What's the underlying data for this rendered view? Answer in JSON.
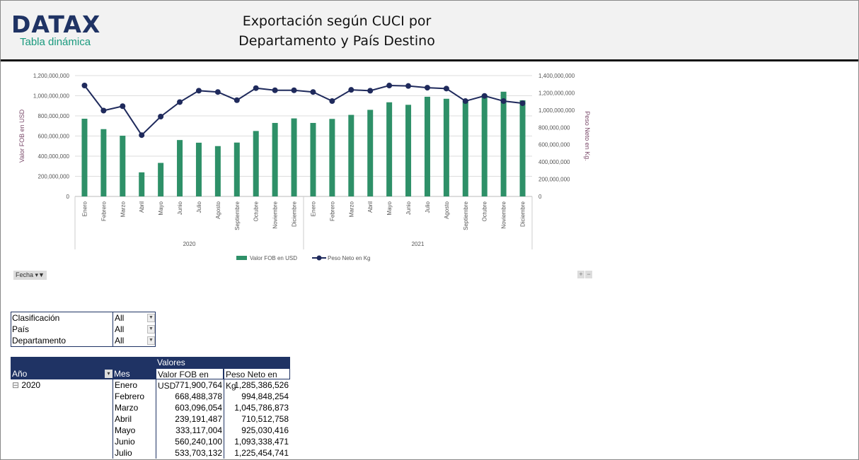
{
  "header": {
    "logo": "DATAX",
    "subtitle": "Tabla dinámica",
    "title_line1": "Exportación según CUCI por",
    "title_line2": "Departamento y País Destino"
  },
  "chart_data": {
    "type": "bar+line",
    "categories": [
      "Enero",
      "Febrero",
      "Marzo",
      "Abril",
      "Mayo",
      "Junio",
      "Julio",
      "Agosto",
      "Septiembre",
      "Octubre",
      "Noviembre",
      "Diciembre",
      "Enero",
      "Febrero",
      "Marzo",
      "Abril",
      "Mayo",
      "Junio",
      "Julio",
      "Agosto",
      "Septiembre",
      "Octubre",
      "Noviembre",
      "Diciembre"
    ],
    "groups": [
      "2020",
      "2021"
    ],
    "ylabel": "Valor FOB en USD",
    "y2label": "Peso Neto en Kg.",
    "ylim": [
      0,
      1200000000
    ],
    "y2lim": [
      0,
      1400000000
    ],
    "yticks": [
      "0",
      "200,000,000",
      "400,000,000",
      "600,000,000",
      "800,000,000",
      "1,000,000,000",
      "1,200,000,000"
    ],
    "y2ticks": [
      "0",
      "200,000,000",
      "400,000,000",
      "600,000,000",
      "800,000,000",
      "1,000,000,000",
      "1,200,000,000",
      "1,400,000,000"
    ],
    "legend_position": "bottom",
    "grid": true,
    "series": [
      {
        "name": "Valor FOB en USD",
        "type": "bar",
        "color": "#2e9068",
        "values": [
          771900764,
          668488378,
          603096054,
          239191487,
          333117004,
          560240100,
          533703132,
          500000000,
          535000000,
          650000000,
          730000000,
          775000000,
          730000000,
          770000000,
          810000000,
          860000000,
          935000000,
          910000000,
          990000000,
          970000000,
          945000000,
          1010000000,
          1040000000,
          955000000
        ]
      },
      {
        "name": "Peso Neto en Kg",
        "type": "line",
        "color": "#1f2a5c",
        "values": [
          1285386526,
          994848254,
          1045786873,
          710512758,
          925030416,
          1093338471,
          1225454741,
          1210000000,
          1115000000,
          1255000000,
          1230000000,
          1230000000,
          1210000000,
          1105000000,
          1235000000,
          1225000000,
          1285000000,
          1280000000,
          1260000000,
          1250000000,
          1105000000,
          1165000000,
          1105000000,
          1080000000
        ]
      }
    ]
  },
  "chart_controls": {
    "fecha": "Fecha",
    "plus": "+",
    "minus": "−"
  },
  "filters": [
    {
      "label": "Clasificación",
      "value": "All"
    },
    {
      "label": "País",
      "value": "All"
    },
    {
      "label": "Departamento",
      "value": "All"
    }
  ],
  "pivot": {
    "values_header": "Valores",
    "col_year": "Año",
    "col_month": "Mes",
    "col_fob": "Valor FOB en USD",
    "col_peso": "Peso Neto en Kg",
    "year": "2020",
    "expand": "⊟",
    "rows": [
      {
        "mes": "Enero",
        "fob": "771,900,764",
        "peso": "1,285,386,526"
      },
      {
        "mes": "Febrero",
        "fob": "668,488,378",
        "peso": "994,848,254"
      },
      {
        "mes": "Marzo",
        "fob": "603,096,054",
        "peso": "1,045,786,873"
      },
      {
        "mes": "Abril",
        "fob": "239,191,487",
        "peso": "710,512,758"
      },
      {
        "mes": "Mayo",
        "fob": "333,117,004",
        "peso": "925,030,416"
      },
      {
        "mes": "Junio",
        "fob": "560,240,100",
        "peso": "1,093,338,471"
      },
      {
        "mes": "Julio",
        "fob": "533,703,132",
        "peso": "1,225,454,741"
      }
    ]
  }
}
